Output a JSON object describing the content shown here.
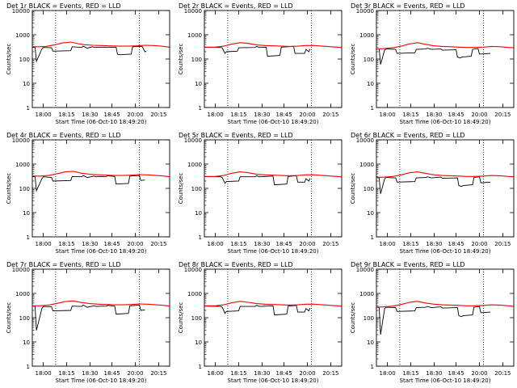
{
  "ylabel": "Counts/sec",
  "xlabel": "Start Time (06-Oct-10 18:49:20)",
  "y_ticks": [
    "1",
    "10",
    "100",
    "1000",
    "10000"
  ],
  "x_ticks": [
    "18:00",
    "18:15",
    "18:30",
    "18:45",
    "20:00",
    "20:15"
  ],
  "colors": {
    "events": "#000000",
    "lld": "#ff0000"
  },
  "chart_data": [
    {
      "type": "line",
      "title": "Det 1r BLACK = Events, RED = LLD",
      "yscale": "log",
      "ylim": [
        1,
        10000
      ],
      "x_tick_labels": [
        "18:00",
        "18:15",
        "18:30",
        "18:45",
        "20:00",
        "20:15"
      ],
      "series": [
        {
          "name": "BLACK = Events",
          "x": [
            0.0,
            0.02,
            0.03,
            0.07,
            0.08,
            0.14,
            0.15,
            0.28,
            0.29,
            0.36,
            0.37,
            0.39,
            0.4,
            0.44,
            0.45,
            0.53,
            0.54,
            0.61,
            0.62,
            0.63,
            0.64,
            0.72,
            0.73,
            0.8,
            0.82,
            0.83
          ],
          "values": [
            310,
            300,
            80,
            260,
            300,
            290,
            210,
            220,
            320,
            300,
            340,
            300,
            280,
            320,
            300,
            310,
            300,
            310,
            160,
            150,
            150,
            160,
            320,
            330,
            200,
            210
          ]
        },
        {
          "name": "RED = LLD",
          "x": [
            0.0,
            0.05,
            0.1,
            0.16,
            0.22,
            0.28,
            0.33,
            0.38,
            0.44,
            0.5,
            0.56,
            0.63,
            0.7,
            0.76,
            0.82,
            0.88,
            0.94,
            1.0
          ],
          "values": [
            320,
            320,
            330,
            380,
            460,
            500,
            430,
            390,
            370,
            360,
            350,
            340,
            340,
            350,
            370,
            360,
            340,
            310
          ]
        }
      ]
    },
    {
      "type": "line",
      "title": "Det 2r BLACK = Events, RED = LLD",
      "yscale": "log",
      "ylim": [
        1,
        10000
      ],
      "x_tick_labels": [
        "18:00",
        "18:15",
        "18:30",
        "18:45",
        "20:00",
        "20:15"
      ],
      "series": [
        {
          "name": "BLACK = Events",
          "x": [
            0.0,
            0.12,
            0.13,
            0.15,
            0.16,
            0.24,
            0.25,
            0.37,
            0.38,
            0.4,
            0.41,
            0.45,
            0.46,
            0.55,
            0.56,
            0.65,
            0.66,
            0.73,
            0.74,
            0.76,
            0.77
          ],
          "values": [
            310,
            300,
            290,
            170,
            200,
            210,
            290,
            300,
            330,
            300,
            300,
            310,
            130,
            140,
            310,
            330,
            170,
            170,
            250,
            200,
            260
          ]
        },
        {
          "name": "RED = LLD",
          "x": [
            0.0,
            0.08,
            0.14,
            0.2,
            0.26,
            0.32,
            0.38,
            0.44,
            0.5,
            0.56,
            0.62,
            0.68,
            0.74,
            0.8,
            0.86,
            0.92,
            1.0
          ],
          "values": [
            310,
            310,
            340,
            410,
            470,
            440,
            380,
            360,
            350,
            340,
            330,
            340,
            360,
            360,
            340,
            320,
            300
          ]
        }
      ]
    },
    {
      "type": "line",
      "title": "Det 3r BLACK = Events, RED = LLD",
      "yscale": "log",
      "ylim": [
        1,
        10000
      ],
      "x_tick_labels": [
        "18:00",
        "18:15",
        "18:30",
        "18:45",
        "20:00",
        "20:15"
      ],
      "series": [
        {
          "name": "BLACK = Events",
          "x": [
            0.0,
            0.02,
            0.03,
            0.06,
            0.07,
            0.14,
            0.15,
            0.28,
            0.29,
            0.36,
            0.37,
            0.39,
            0.4,
            0.47,
            0.48,
            0.58,
            0.59,
            0.61,
            0.62,
            0.69,
            0.7,
            0.74,
            0.75,
            0.83
          ],
          "values": [
            260,
            260,
            60,
            240,
            260,
            250,
            170,
            180,
            250,
            260,
            280,
            260,
            250,
            260,
            230,
            240,
            120,
            110,
            120,
            130,
            250,
            270,
            160,
            170
          ]
        },
        {
          "name": "RED = LLD",
          "x": [
            0.0,
            0.06,
            0.12,
            0.18,
            0.24,
            0.3,
            0.36,
            0.42,
            0.48,
            0.54,
            0.6,
            0.66,
            0.72,
            0.78,
            0.84,
            0.9,
            0.96,
            1.0
          ],
          "values": [
            260,
            270,
            290,
            340,
            420,
            470,
            400,
            350,
            330,
            320,
            310,
            300,
            300,
            310,
            330,
            320,
            300,
            290
          ]
        }
      ]
    },
    {
      "type": "line",
      "title": "Det 4r BLACK = Events, RED = LLD",
      "yscale": "log",
      "ylim": [
        1,
        10000
      ],
      "x_tick_labels": [
        "18:00",
        "18:15",
        "18:30",
        "18:45",
        "20:00",
        "20:15"
      ],
      "series": [
        {
          "name": "BLACK = Events",
          "x": [
            0.0,
            0.02,
            0.03,
            0.07,
            0.08,
            0.14,
            0.15,
            0.28,
            0.29,
            0.36,
            0.37,
            0.39,
            0.4,
            0.45,
            0.46,
            0.54,
            0.55,
            0.6,
            0.61,
            0.7,
            0.71,
            0.78,
            0.79,
            0.82
          ],
          "values": [
            310,
            300,
            80,
            250,
            300,
            280,
            200,
            210,
            310,
            300,
            340,
            300,
            280,
            320,
            300,
            310,
            330,
            310,
            150,
            160,
            320,
            340,
            210,
            220
          ]
        },
        {
          "name": "RED = LLD",
          "x": [
            0.0,
            0.06,
            0.12,
            0.18,
            0.24,
            0.3,
            0.36,
            0.42,
            0.48,
            0.54,
            0.6,
            0.66,
            0.72,
            0.78,
            0.84,
            0.9,
            0.96,
            1.0
          ],
          "values": [
            320,
            320,
            340,
            400,
            480,
            500,
            420,
            380,
            360,
            350,
            340,
            340,
            350,
            370,
            360,
            340,
            320,
            300
          ]
        }
      ]
    },
    {
      "type": "line",
      "title": "Det 5r BLACK = Events, RED = LLD",
      "yscale": "log",
      "ylim": [
        1,
        10000
      ],
      "x_tick_labels": [
        "18:00",
        "18:15",
        "18:30",
        "18:45",
        "20:00",
        "20:15"
      ],
      "series": [
        {
          "name": "BLACK = Events",
          "x": [
            0.0,
            0.12,
            0.13,
            0.15,
            0.16,
            0.25,
            0.26,
            0.37,
            0.38,
            0.4,
            0.41,
            0.5,
            0.51,
            0.6,
            0.61,
            0.67,
            0.68,
            0.73,
            0.74,
            0.76,
            0.77
          ],
          "values": [
            310,
            300,
            280,
            160,
            190,
            200,
            300,
            300,
            330,
            300,
            300,
            320,
            140,
            150,
            310,
            330,
            180,
            180,
            250,
            200,
            260
          ]
        },
        {
          "name": "RED = LLD",
          "x": [
            0.0,
            0.08,
            0.14,
            0.2,
            0.26,
            0.32,
            0.38,
            0.44,
            0.5,
            0.56,
            0.62,
            0.68,
            0.74,
            0.8,
            0.86,
            0.92,
            1.0
          ],
          "values": [
            310,
            310,
            340,
            420,
            480,
            440,
            380,
            360,
            350,
            340,
            330,
            340,
            360,
            360,
            340,
            320,
            300
          ]
        }
      ]
    },
    {
      "type": "line",
      "title": "Det 6r BLACK = Events, RED = LLD",
      "yscale": "log",
      "ylim": [
        1,
        10000
      ],
      "x_tick_labels": [
        "18:00",
        "18:15",
        "18:30",
        "18:45",
        "20:00",
        "20:15"
      ],
      "series": [
        {
          "name": "BLACK = Events",
          "x": [
            0.0,
            0.02,
            0.03,
            0.06,
            0.07,
            0.14,
            0.15,
            0.28,
            0.29,
            0.36,
            0.37,
            0.39,
            0.4,
            0.47,
            0.48,
            0.59,
            0.6,
            0.62,
            0.63,
            0.7,
            0.71,
            0.75,
            0.76,
            0.83
          ],
          "values": [
            280,
            270,
            60,
            250,
            280,
            270,
            180,
            190,
            270,
            280,
            300,
            280,
            270,
            290,
            260,
            270,
            130,
            120,
            130,
            140,
            280,
            300,
            170,
            180
          ]
        },
        {
          "name": "RED = LLD",
          "x": [
            0.0,
            0.06,
            0.12,
            0.18,
            0.24,
            0.3,
            0.36,
            0.42,
            0.48,
            0.54,
            0.6,
            0.66,
            0.72,
            0.78,
            0.84,
            0.9,
            0.96,
            1.0
          ],
          "values": [
            280,
            290,
            310,
            360,
            440,
            480,
            410,
            360,
            340,
            330,
            320,
            310,
            310,
            320,
            340,
            330,
            310,
            300
          ]
        }
      ]
    },
    {
      "type": "line",
      "title": "Det 7r BLACK = Events, RED = LLD",
      "yscale": "log",
      "ylim": [
        1,
        10000
      ],
      "x_tick_labels": [
        "18:00",
        "18:15",
        "18:30",
        "18:45",
        "20:00",
        "20:15"
      ],
      "series": [
        {
          "name": "BLACK = Events",
          "x": [
            0.0,
            0.02,
            0.03,
            0.07,
            0.08,
            0.14,
            0.15,
            0.28,
            0.29,
            0.36,
            0.37,
            0.39,
            0.4,
            0.45,
            0.46,
            0.54,
            0.55,
            0.6,
            0.61,
            0.7,
            0.71,
            0.78,
            0.79,
            0.82
          ],
          "values": [
            300,
            290,
            30,
            240,
            290,
            280,
            190,
            200,
            300,
            290,
            330,
            290,
            270,
            310,
            290,
            300,
            320,
            300,
            140,
            150,
            310,
            330,
            200,
            210
          ]
        },
        {
          "name": "RED = LLD",
          "x": [
            0.0,
            0.06,
            0.12,
            0.18,
            0.24,
            0.3,
            0.36,
            0.42,
            0.48,
            0.54,
            0.6,
            0.66,
            0.72,
            0.78,
            0.84,
            0.9,
            0.96,
            1.0
          ],
          "values": [
            310,
            310,
            330,
            390,
            460,
            490,
            420,
            380,
            360,
            350,
            340,
            340,
            350,
            370,
            360,
            340,
            320,
            300
          ]
        }
      ]
    },
    {
      "type": "line",
      "title": "Det 8r BLACK = Events, RED = LLD",
      "yscale": "log",
      "ylim": [
        1,
        10000
      ],
      "x_tick_labels": [
        "18:00",
        "18:15",
        "18:30",
        "18:45",
        "20:00",
        "20:15"
      ],
      "series": [
        {
          "name": "BLACK = Events",
          "x": [
            0.0,
            0.12,
            0.13,
            0.15,
            0.16,
            0.25,
            0.26,
            0.37,
            0.38,
            0.4,
            0.41,
            0.5,
            0.51,
            0.6,
            0.61,
            0.67,
            0.68,
            0.73,
            0.74,
            0.76,
            0.77
          ],
          "values": [
            300,
            290,
            270,
            150,
            180,
            190,
            290,
            290,
            320,
            290,
            290,
            310,
            130,
            140,
            300,
            320,
            170,
            170,
            240,
            190,
            250
          ]
        },
        {
          "name": "RED = LLD",
          "x": [
            0.0,
            0.08,
            0.14,
            0.2,
            0.26,
            0.32,
            0.38,
            0.44,
            0.5,
            0.56,
            0.62,
            0.68,
            0.74,
            0.8,
            0.86,
            0.92,
            1.0
          ],
          "values": [
            310,
            310,
            340,
            410,
            470,
            430,
            380,
            360,
            350,
            340,
            330,
            340,
            360,
            360,
            340,
            320,
            300
          ]
        }
      ]
    },
    {
      "type": "line",
      "title": "Det 9r BLACK = Events, RED = LLD",
      "yscale": "log",
      "ylim": [
        1,
        10000
      ],
      "x_tick_labels": [
        "18:00",
        "18:15",
        "18:30",
        "18:45",
        "20:00",
        "20:15"
      ],
      "series": [
        {
          "name": "BLACK = Events",
          "x": [
            0.0,
            0.02,
            0.03,
            0.06,
            0.07,
            0.14,
            0.15,
            0.28,
            0.29,
            0.36,
            0.37,
            0.39,
            0.4,
            0.47,
            0.48,
            0.59,
            0.6,
            0.62,
            0.63,
            0.7,
            0.71,
            0.75,
            0.76,
            0.83
          ],
          "values": [
            270,
            260,
            20,
            240,
            270,
            260,
            180,
            190,
            260,
            270,
            290,
            270,
            260,
            280,
            250,
            260,
            120,
            110,
            120,
            130,
            270,
            290,
            160,
            170
          ]
        },
        {
          "name": "RED = LLD",
          "x": [
            0.0,
            0.06,
            0.12,
            0.18,
            0.24,
            0.3,
            0.36,
            0.42,
            0.48,
            0.54,
            0.6,
            0.66,
            0.72,
            0.78,
            0.84,
            0.9,
            0.96,
            1.0
          ],
          "values": [
            270,
            280,
            300,
            350,
            430,
            470,
            400,
            360,
            340,
            330,
            320,
            310,
            310,
            320,
            340,
            330,
            310,
            290
          ]
        }
      ]
    }
  ]
}
